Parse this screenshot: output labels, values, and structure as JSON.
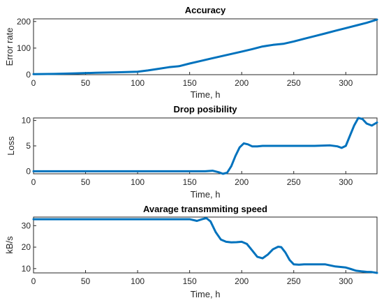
{
  "chart_data": [
    {
      "type": "line",
      "title": "Accuracy",
      "xlabel": "Time, h",
      "ylabel": "Error rate",
      "xlim": [
        0,
        330
      ],
      "ylim": [
        0,
        210
      ],
      "xticks": [
        0,
        50,
        100,
        150,
        200,
        250,
        300
      ],
      "yticks": [
        0,
        100,
        200
      ],
      "grid": false,
      "legend": "none",
      "color": "#0072BD",
      "series": [
        {
          "x": [
            0,
            20,
            40,
            60,
            80,
            100,
            110,
            120,
            130,
            140,
            150,
            160,
            170,
            180,
            190,
            200,
            210,
            220,
            230,
            240,
            250,
            260,
            270,
            280,
            290,
            300,
            310,
            320,
            330
          ],
          "y": [
            2,
            3,
            5,
            7,
            9,
            11,
            16,
            22,
            28,
            32,
            42,
            51,
            60,
            69,
            78,
            87,
            96,
            106,
            112,
            116,
            125,
            135,
            145,
            155,
            165,
            175,
            185,
            195,
            207
          ]
        }
      ]
    },
    {
      "type": "line",
      "title": "Drop posibility",
      "xlabel": "Time, h",
      "ylabel": "Loss",
      "xlim": [
        0,
        330
      ],
      "ylim": [
        -0.5,
        10.5
      ],
      "xticks": [
        0,
        50,
        100,
        150,
        200,
        250,
        300
      ],
      "yticks": [
        0,
        5,
        10
      ],
      "grid": false,
      "legend": "none",
      "color": "#0072BD",
      "series": [
        {
          "x": [
            0,
            50,
            100,
            150,
            165,
            172,
            178,
            182,
            186,
            190,
            194,
            198,
            202,
            206,
            210,
            215,
            220,
            230,
            250,
            270,
            285,
            292,
            296,
            300,
            304,
            308,
            312,
            316,
            320,
            325,
            330
          ],
          "y": [
            0,
            0,
            0,
            0,
            0,
            0.1,
            -0.2,
            -0.5,
            -0.3,
            1.0,
            3.0,
            4.7,
            5.5,
            5.3,
            4.9,
            4.9,
            5.0,
            5.0,
            5.0,
            5.0,
            5.1,
            4.9,
            4.6,
            5.0,
            7.0,
            9.0,
            10.5,
            10.3,
            9.4,
            9.0,
            9.6
          ]
        }
      ]
    },
    {
      "type": "line",
      "title": "Avarage transmmiting speed",
      "xlabel": "Time, h",
      "ylabel": "kB/s",
      "xlim": [
        0,
        330
      ],
      "ylim": [
        8,
        34
      ],
      "xticks": [
        0,
        50,
        100,
        150,
        200,
        250,
        300
      ],
      "yticks": [
        10,
        20,
        30
      ],
      "grid": false,
      "legend": "none",
      "color": "#0072BD",
      "series": [
        {
          "x": [
            0,
            50,
            100,
            140,
            150,
            157,
            162,
            166,
            170,
            175,
            180,
            185,
            190,
            195,
            200,
            205,
            210,
            215,
            220,
            225,
            230,
            235,
            238,
            242,
            246,
            250,
            255,
            260,
            270,
            280,
            290,
            300,
            305,
            310,
            315,
            320,
            325,
            330
          ],
          "y": [
            33,
            33,
            33,
            33,
            33,
            32.2,
            33,
            33.5,
            32,
            27,
            23.5,
            22.5,
            22.2,
            22.3,
            22.5,
            21.5,
            18.5,
            15.5,
            14.8,
            16.5,
            19,
            20.2,
            20,
            17.5,
            14,
            12,
            11.8,
            12,
            12,
            12,
            11,
            10.5,
            9.8,
            9.0,
            8.7,
            8.5,
            8.4,
            8.0
          ]
        }
      ]
    }
  ]
}
